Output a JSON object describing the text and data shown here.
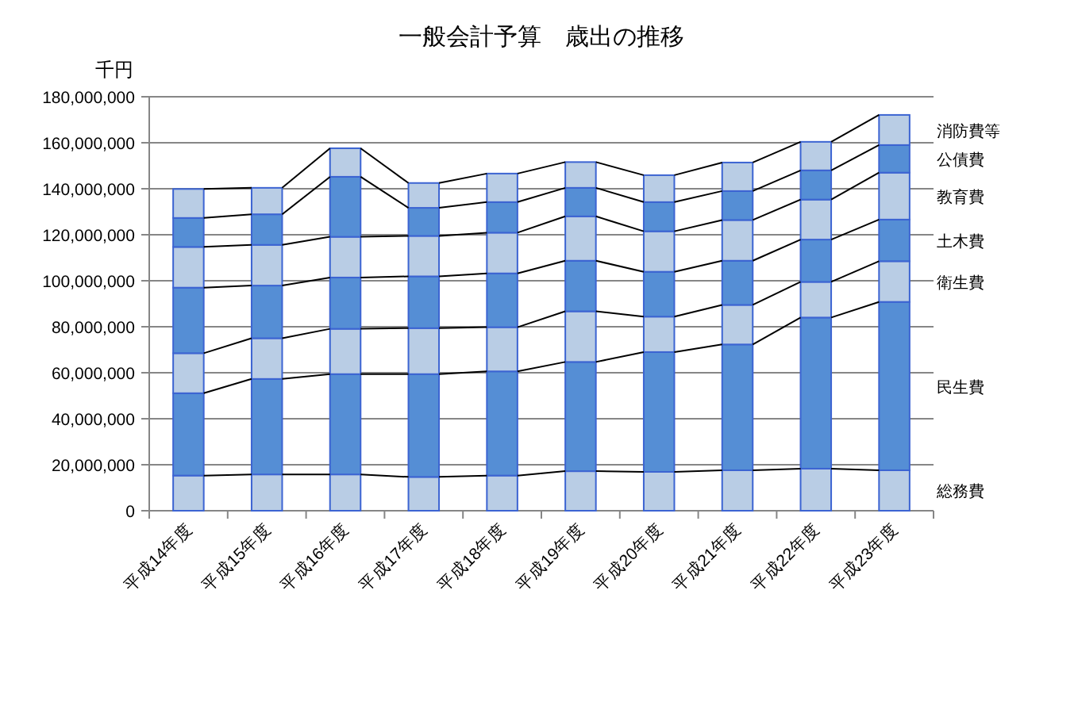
{
  "chart_data": {
    "type": "bar",
    "stacked": true,
    "title": "一般会計予算　歳出の推移",
    "ylabel": "千円",
    "categories": [
      "平成14年度",
      "平成15年度",
      "平成16年度",
      "平成17年度",
      "平成18年度",
      "平成19年度",
      "平成20年度",
      "平成21年度",
      "平成22年度",
      "平成23年度"
    ],
    "series": [
      {
        "name": "総務費",
        "color": "#b9cde5",
        "values": [
          15300000,
          15800000,
          15800000,
          14700000,
          15300000,
          17200000,
          16900000,
          17600000,
          18300000,
          17600000
        ]
      },
      {
        "name": "民生費",
        "color": "#558ed5",
        "values": [
          35800000,
          41500000,
          43600000,
          44700000,
          45300000,
          47500000,
          52100000,
          54700000,
          65700000,
          73200000
        ]
      },
      {
        "name": "衛生費",
        "color": "#b9cde5",
        "values": [
          17400000,
          17700000,
          19700000,
          20000000,
          19200000,
          22000000,
          15400000,
          17200000,
          15500000,
          17700000
        ]
      },
      {
        "name": "土木費",
        "color": "#558ed5",
        "values": [
          28500000,
          22900000,
          22300000,
          22500000,
          23400000,
          22000000,
          19500000,
          19200000,
          18400000,
          18100000
        ]
      },
      {
        "name": "教育費",
        "color": "#b9cde5",
        "values": [
          17700000,
          17700000,
          17700000,
          17600000,
          17700000,
          19300000,
          17600000,
          17700000,
          17400000,
          20400000
        ]
      },
      {
        "name": "公債費",
        "color": "#558ed5",
        "values": [
          12600000,
          13300000,
          26100000,
          12200000,
          13300000,
          12400000,
          12700000,
          12600000,
          12700000,
          12000000
        ]
      },
      {
        "name": "消防費等",
        "color": "#b9cde5",
        "values": [
          12600000,
          11500000,
          12400000,
          10800000,
          12400000,
          11200000,
          11700000,
          12400000,
          12400000,
          13100000
        ]
      }
    ],
    "ylim": [
      0,
      180000000
    ],
    "yticks": [
      0,
      {
        "value": 20000000,
        "label": "20,000,000"
      },
      {
        "value": 40000000,
        "label": "40,000,000"
      },
      {
        "value": 60000000,
        "label": "60,000,000"
      },
      {
        "value": 80000000,
        "label": "80,000,000"
      },
      {
        "value": 100000000,
        "label": "100,000,000"
      },
      {
        "value": 120000000,
        "label": "120,000,000"
      },
      {
        "value": 140000000,
        "label": "140,000,000"
      },
      {
        "value": 160000000,
        "label": "160,000,000"
      },
      {
        "value": 180000000,
        "label": "180,000,000"
      }
    ],
    "grid": "y"
  }
}
